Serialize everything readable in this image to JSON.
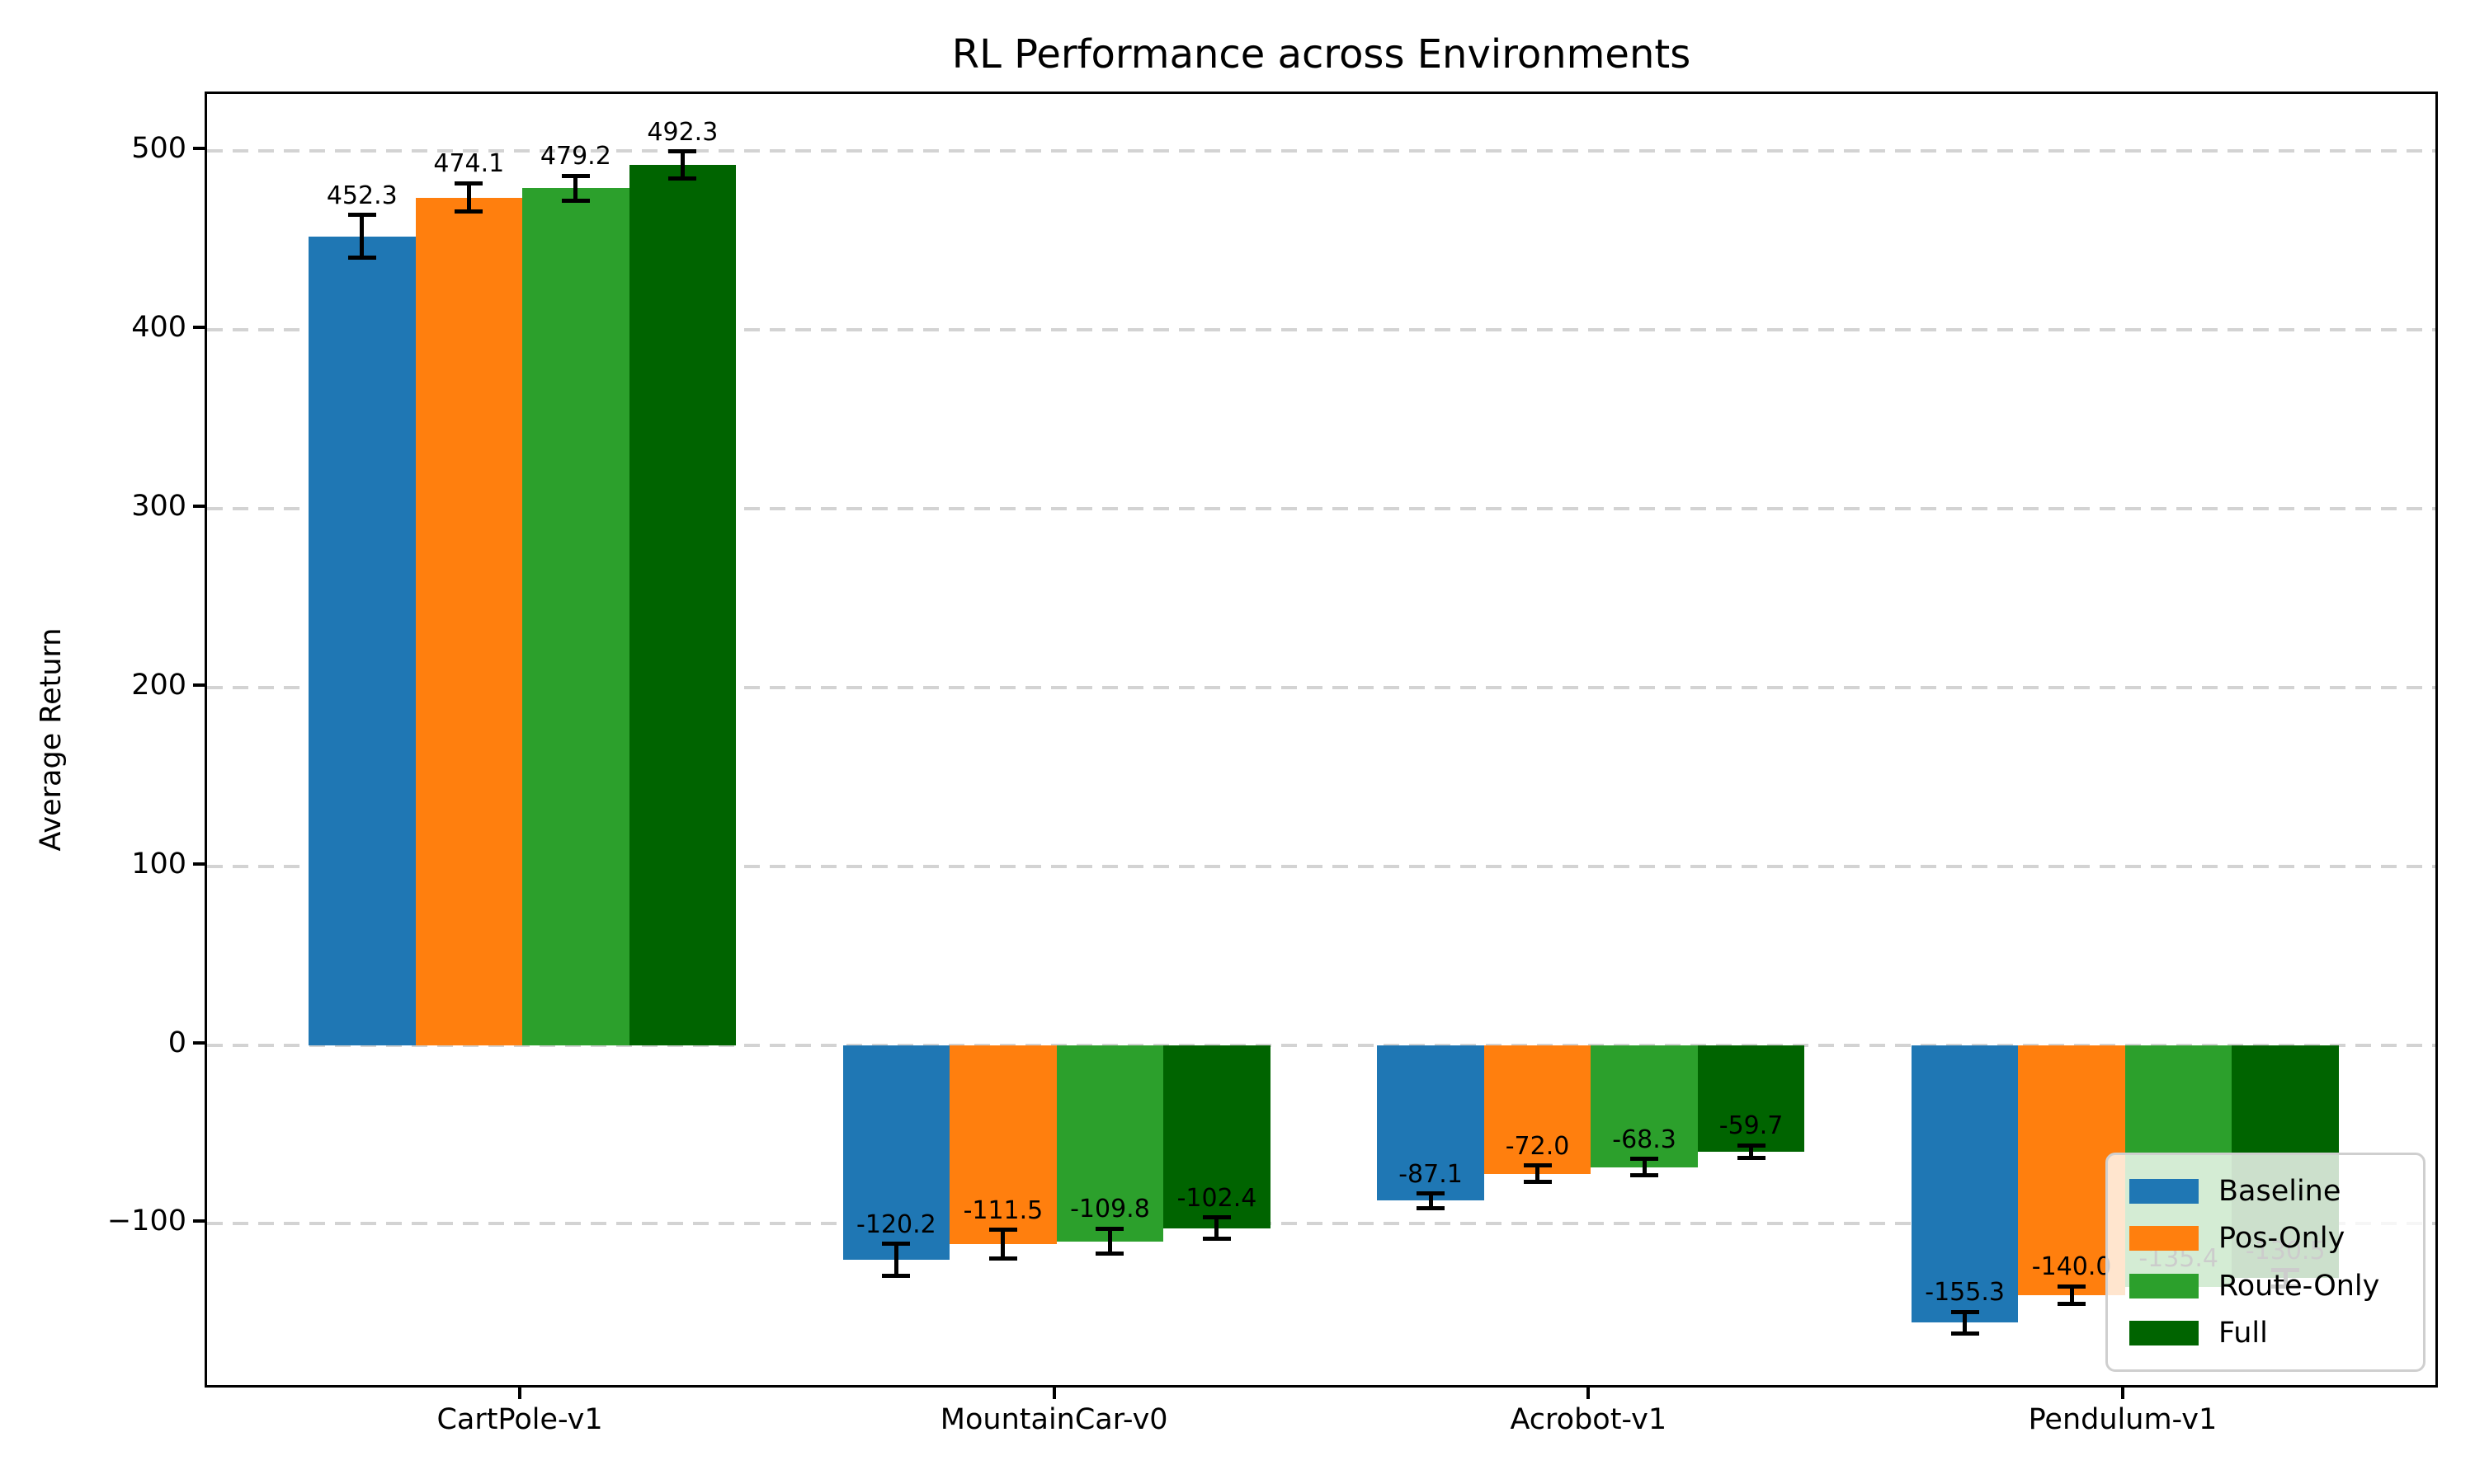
{
  "chart_data": {
    "type": "bar",
    "title": "RL Performance across Environments",
    "xlabel": "",
    "ylabel": "Average Return",
    "categories": [
      "CartPole-v1",
      "MountainCar-v0",
      "Acrobot-v1",
      "Pendulum-v1"
    ],
    "series": [
      {
        "name": "Baseline",
        "color": "#1f77b4",
        "values": [
          452.3,
          -120.2,
          -87.1,
          -155.3
        ],
        "errors": [
          12.0,
          9.0,
          4.0,
          6.0
        ]
      },
      {
        "name": "Pos-Only",
        "color": "#ff7f0e",
        "values": [
          474.1,
          -111.5,
          -72.0,
          -140.0
        ],
        "errors": [
          8.0,
          8.0,
          4.5,
          5.0
        ]
      },
      {
        "name": "Route-Only",
        "color": "#2ca02c",
        "values": [
          479.2,
          -109.8,
          -68.3,
          -135.4
        ],
        "errors": [
          7.0,
          7.0,
          4.5,
          5.0
        ]
      },
      {
        "name": "Full",
        "color": "#006400",
        "values": [
          492.3,
          -102.4,
          -59.7,
          -130.5
        ],
        "errors": [
          7.5,
          6.0,
          3.5,
          4.5
        ]
      }
    ],
    "yticks": [
      -100,
      0,
      100,
      200,
      300,
      400,
      500
    ],
    "ylim": [
      -193,
      532
    ],
    "xlim": [
      -0.59,
      3.59
    ],
    "bar_width_units": 0.2,
    "group_offsets_units": [
      -0.3,
      -0.1,
      0.1,
      0.3
    ],
    "grid": "horizontal dashed lightgray",
    "error_bars": true,
    "value_label_decimals": 1,
    "legend": {
      "position": "lower right",
      "entries": [
        "Baseline",
        "Pos-Only",
        "Route-Only",
        "Full"
      ]
    },
    "colors": {
      "axis": "#000000",
      "gridline": "#d3d3d3",
      "legend_border": "#cfcfcf",
      "legend_background": "rgba(255,255,255,0.8)"
    }
  }
}
